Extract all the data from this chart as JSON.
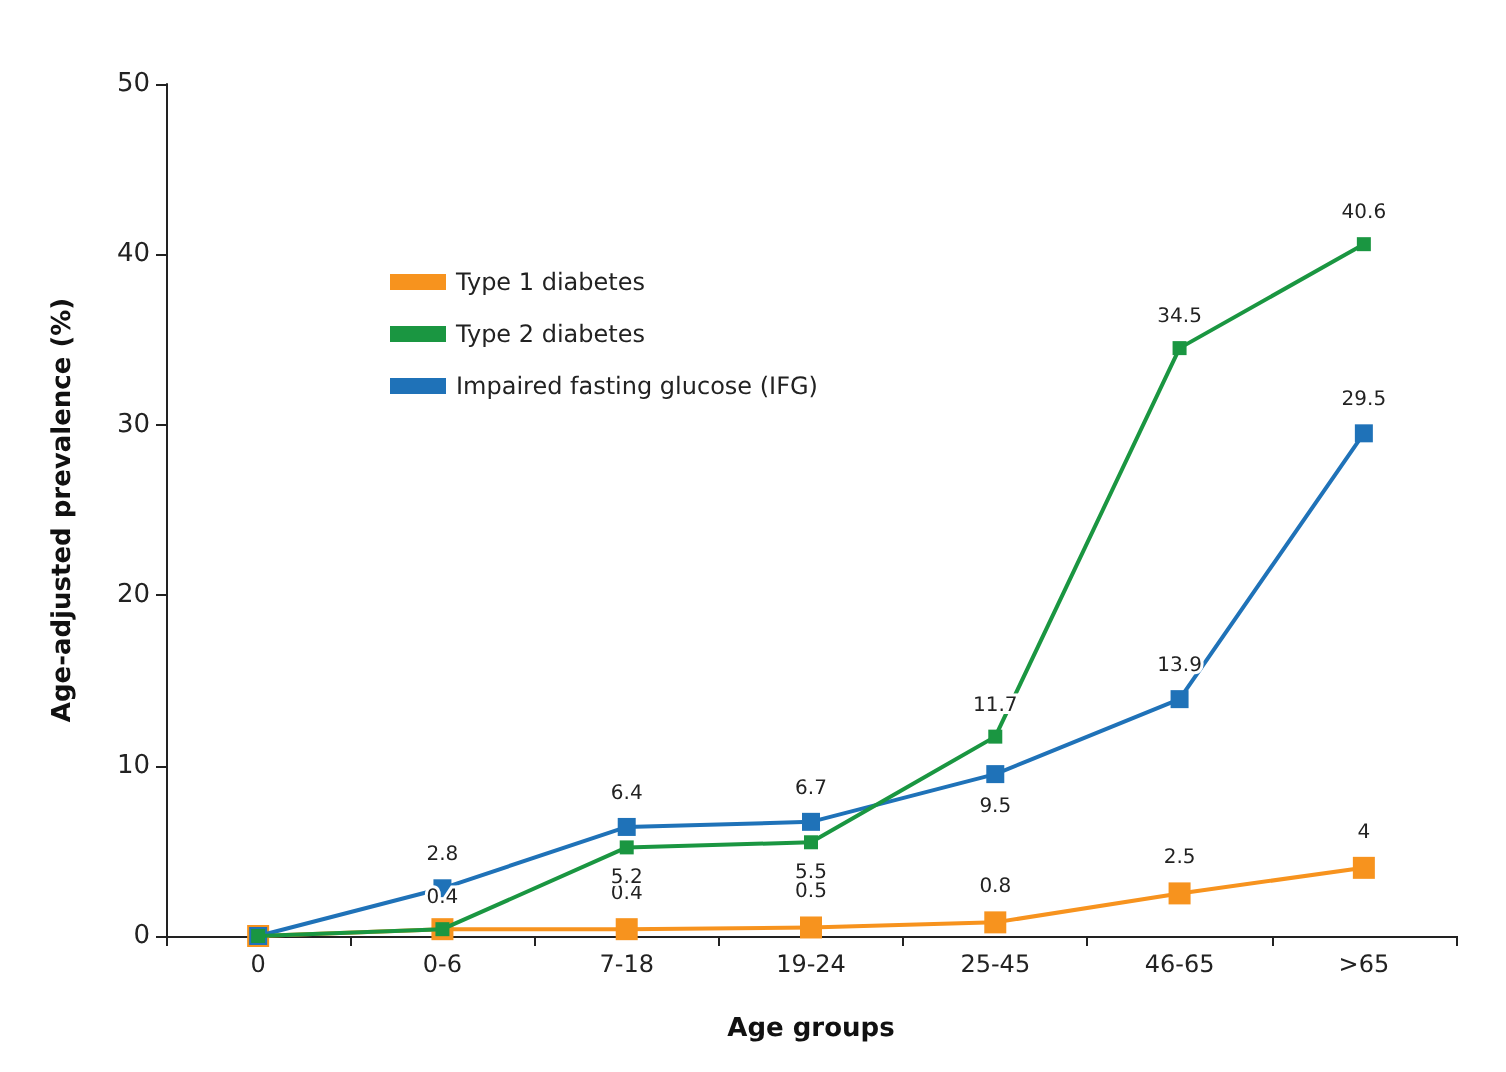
{
  "chart_data": {
    "type": "line",
    "xlabel": "Age groups",
    "ylabel": "Age-adjusted prevalence (%)",
    "categories": [
      "0",
      "0-6",
      "7-18",
      "19-24",
      "25-45",
      "46-65",
      ">65"
    ],
    "series": [
      {
        "name": "Type 1 diabetes",
        "color": "#f7931e",
        "values": [
          0,
          0.4,
          0.4,
          0.5,
          0.8,
          2.5,
          4
        ],
        "value_labels": [
          null,
          null,
          "0.4",
          "0.5",
          "0.8",
          "2.5",
          "4"
        ]
      },
      {
        "name": "Type 2 diabetes",
        "color": "#1a9641",
        "values": [
          0,
          0.4,
          5.2,
          5.5,
          11.7,
          34.5,
          40.6
        ],
        "value_labels": [
          null,
          "0.4",
          "5.2",
          "5.5",
          "11.7",
          "34.5",
          "40.6"
        ]
      },
      {
        "name": "Impaired fasting glucose (IFG)",
        "color": "#1f72b8",
        "values": [
          0,
          2.8,
          6.4,
          6.7,
          9.5,
          13.9,
          29.5
        ],
        "value_labels": [
          null,
          "2.8",
          "6.4",
          "6.7",
          "9.5",
          "13.9",
          "29.5"
        ]
      }
    ],
    "ylim": [
      0,
      50
    ],
    "yticks": [
      0,
      10,
      20,
      30,
      40,
      50
    ],
    "grid": false,
    "legend": "top left",
    "marker": "square",
    "line_style": "solid"
  }
}
